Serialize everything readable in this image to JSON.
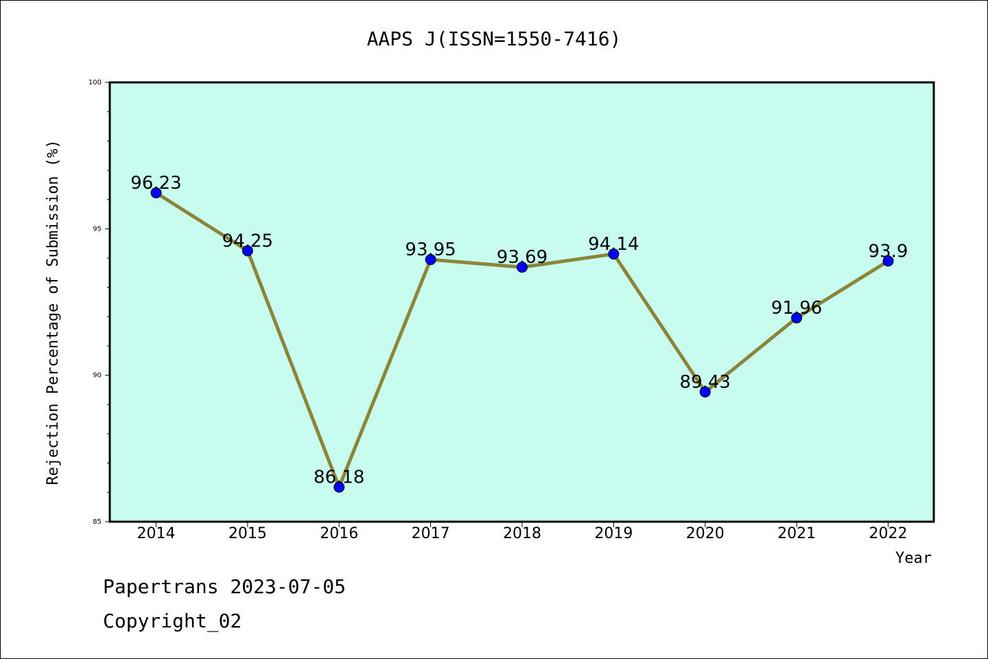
{
  "chart_data": {
    "type": "line",
    "title": "AAPS J(ISSN=1550-7416)",
    "xlabel": "Year",
    "ylabel": "Rejection Percentage of Submission (%)",
    "x": [
      "2014",
      "2015",
      "2016",
      "2017",
      "2018",
      "2019",
      "2020",
      "2021",
      "2022"
    ],
    "y_ticks": [
      "85",
      "90",
      "95",
      "100"
    ],
    "data_labels": [
      "96.23",
      "94.25",
      "86.18",
      "93.95",
      "93.69",
      "94.14",
      "89.43",
      "91.96",
      "93.9"
    ],
    "series": [
      {
        "values": [
          96.23,
          94.25,
          86.18,
          93.95,
          93.69,
          94.14,
          89.43,
          91.96,
          93.9
        ]
      }
    ],
    "ylim": [
      85,
      100
    ],
    "grid": false,
    "colors": {
      "plot_background": "#c8fcee",
      "line": "#8b8439",
      "marker": "#0000ff"
    }
  },
  "footer": {
    "line1": "Papertrans 2023-07-05",
    "line2": "Copyright_02"
  }
}
